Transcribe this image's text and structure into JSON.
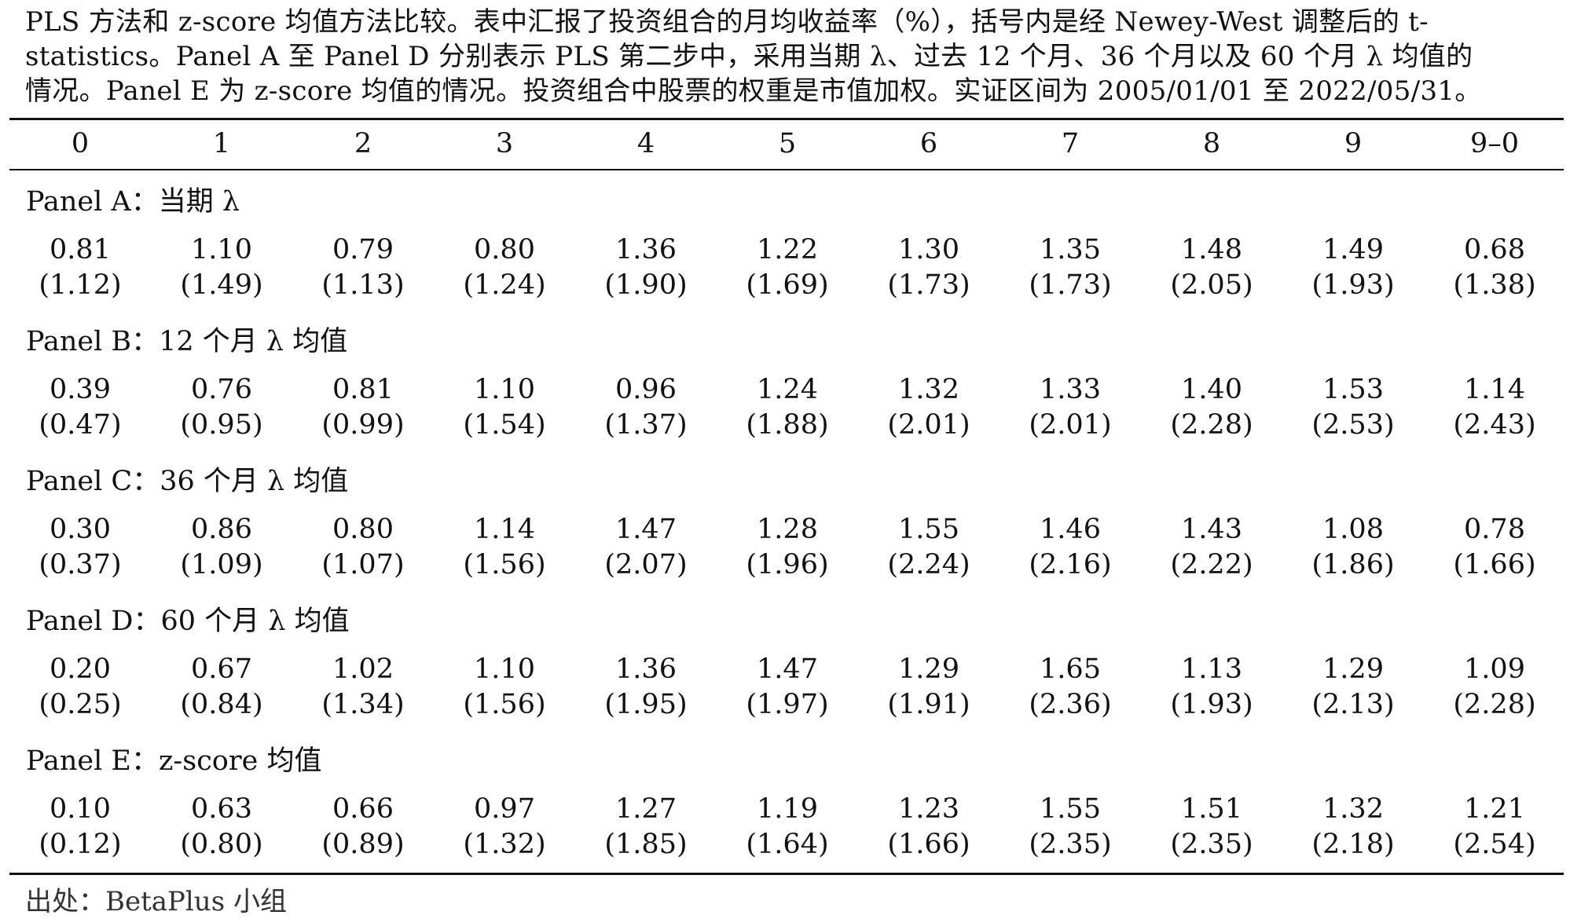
{
  "caption": {
    "line1": "PLS 方法和 z-score 均值方法比较。表中汇报了投资组合的月均收益率（%），括号内是经 Newey-West 调整后的 t-",
    "line2": "statistics。Panel A 至 Panel D 分别表示 PLS 第二步中，采用当期 λ、过去 12 个月、36 个月以及 60 个月 λ 均值的",
    "line3": "情况。Panel E 为 z-score 均值的情况。投资组合中股票的权重是市值加权。实证区间为 2005/01/01 至 2022/05/31。"
  },
  "table": {
    "headers": [
      "0",
      "1",
      "2",
      "3",
      "4",
      "5",
      "6",
      "7",
      "8",
      "9",
      "9–0"
    ],
    "panels": [
      {
        "title": "Panel A：当期 λ",
        "means": [
          "0.81",
          "1.10",
          "0.79",
          "0.80",
          "1.36",
          "1.22",
          "1.30",
          "1.35",
          "1.48",
          "1.49",
          "0.68"
        ],
        "tstats": [
          "(1.12)",
          "(1.49)",
          "(1.13)",
          "(1.24)",
          "(1.90)",
          "(1.69)",
          "(1.73)",
          "(1.73)",
          "(2.05)",
          "(1.93)",
          "(1.38)"
        ]
      },
      {
        "title": "Panel B：12 个月 λ 均值",
        "means": [
          "0.39",
          "0.76",
          "0.81",
          "1.10",
          "0.96",
          "1.24",
          "1.32",
          "1.33",
          "1.40",
          "1.53",
          "1.14"
        ],
        "tstats": [
          "(0.47)",
          "(0.95)",
          "(0.99)",
          "(1.54)",
          "(1.37)",
          "(1.88)",
          "(2.01)",
          "(2.01)",
          "(2.28)",
          "(2.53)",
          "(2.43)"
        ]
      },
      {
        "title": "Panel C：36 个月 λ 均值",
        "means": [
          "0.30",
          "0.86",
          "0.80",
          "1.14",
          "1.47",
          "1.28",
          "1.55",
          "1.46",
          "1.43",
          "1.08",
          "0.78"
        ],
        "tstats": [
          "(0.37)",
          "(1.09)",
          "(1.07)",
          "(1.56)",
          "(2.07)",
          "(1.96)",
          "(2.24)",
          "(2.16)",
          "(2.22)",
          "(1.86)",
          "(1.66)"
        ]
      },
      {
        "title": "Panel D：60 个月 λ 均值",
        "means": [
          "0.20",
          "0.67",
          "1.02",
          "1.10",
          "1.36",
          "1.47",
          "1.29",
          "1.65",
          "1.13",
          "1.29",
          "1.09"
        ],
        "tstats": [
          "(0.25)",
          "(0.84)",
          "(1.34)",
          "(1.56)",
          "(1.95)",
          "(1.97)",
          "(1.91)",
          "(2.36)",
          "(1.93)",
          "(2.13)",
          "(2.28)"
        ]
      },
      {
        "title": "Panel E：z-score 均值",
        "means": [
          "0.10",
          "0.63",
          "0.66",
          "0.97",
          "1.27",
          "1.19",
          "1.23",
          "1.55",
          "1.51",
          "1.32",
          "1.21"
        ],
        "tstats": [
          "(0.12)",
          "(0.80)",
          "(0.89)",
          "(1.32)",
          "(1.85)",
          "(1.64)",
          "(1.66)",
          "(2.35)",
          "(2.35)",
          "(2.18)",
          "(2.54)"
        ]
      }
    ]
  },
  "source": "出处：BetaPlus 小组"
}
